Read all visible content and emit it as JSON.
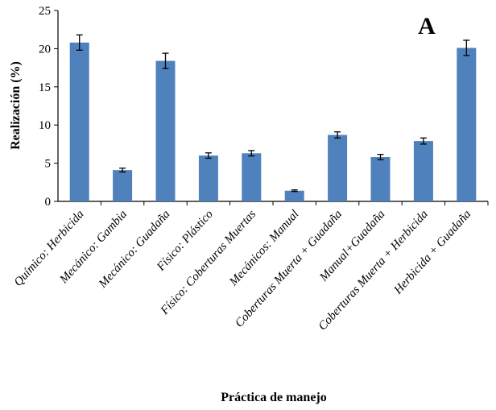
{
  "chart_data": {
    "type": "bar",
    "panel_letter": "A",
    "title": "",
    "xlabel": "Práctica de manejo",
    "ylabel": "Realización (%)",
    "ylim": [
      0,
      25
    ],
    "yticks": [
      0,
      5,
      10,
      15,
      20,
      25
    ],
    "grid": false,
    "bar_color": "#4f81bd",
    "categories": [
      "Químico: Herbicida",
      "Mecánico: Gambia",
      "Mecánico: Guadaña",
      "Físico: Plástico",
      "Físico: Coberturas Muertas",
      "Mecánicos: Manual",
      "Coberturas Muerta + Guadaña",
      "Manual+Guadaña",
      "Coberturas Muerta + Herbicida",
      "Herbicida + Guadaña"
    ],
    "values": [
      20.8,
      4.1,
      18.4,
      6.0,
      6.3,
      1.4,
      8.7,
      5.8,
      7.9,
      20.1
    ],
    "errors": [
      1.0,
      0.25,
      1.0,
      0.35,
      0.35,
      0.1,
      0.4,
      0.35,
      0.4,
      1.0
    ]
  }
}
